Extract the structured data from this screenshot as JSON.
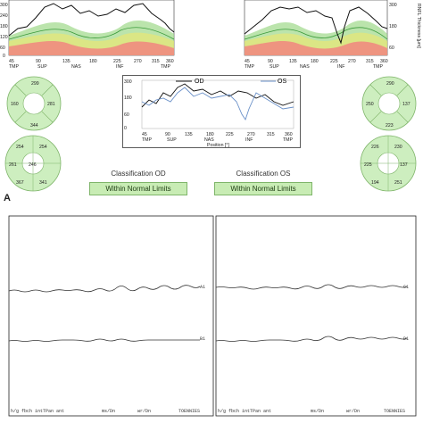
{
  "panel_a": {
    "label": "A",
    "ticks_x": [
      "TMP",
      "45",
      "SUP",
      "90",
      "135",
      "NAS",
      "180",
      "225",
      "INF",
      "270",
      "315",
      "TMP",
      "360"
    ],
    "ticks_y": [
      "300",
      "240",
      "180",
      "120",
      "60",
      "0"
    ],
    "y_axis_label": "RNFL Thickness [µm]",
    "x_axis_label": "Position [°]",
    "combined_legend_od": "OD",
    "combined_legend_os": "OS",
    "classification_od_title": "Classification OD",
    "classification_od_value": "Within Normal Limits",
    "classification_os_title": "Classification OS",
    "classification_os_value": "Within Normal Limits",
    "od_clock": {
      "S": "299",
      "N": "160",
      "T": "281",
      "I": "344"
    },
    "os_clock": {
      "S": "290",
      "N": "250",
      "T": "137",
      "I": "223"
    },
    "od_sectors": {
      "TS": "254",
      "NS": "254",
      "N": "246",
      "T": "261",
      "NI": "341",
      "TI": "367"
    },
    "os_sectors": {
      "TS": "230",
      "NS": "226",
      "N": "225",
      "T": "137",
      "NI": "194",
      "TI": "251"
    }
  },
  "panel_b": {
    "left_label_top": "A1",
    "left_label_bottom": "B1",
    "right_label_top": "C1",
    "right_label_bottom": "D1",
    "footer_left_a": "h/g fbch intTPan ant",
    "footer_left_b": "ms/Dn",
    "footer_left_c": "wr/Dn",
    "footer_left_d": "TOENNIES",
    "footer_right_a": "h/g fbch intTPan ant",
    "footer_right_b": "ms/Dn",
    "footer_right_c": "wr/Dn",
    "footer_right_d": "TOENNIES"
  },
  "colors": {
    "normal_green": "#9ed989",
    "border_yellow": "#f0e86a",
    "below_red": "#f08b7f",
    "button_green": "#c8ecb4"
  }
}
